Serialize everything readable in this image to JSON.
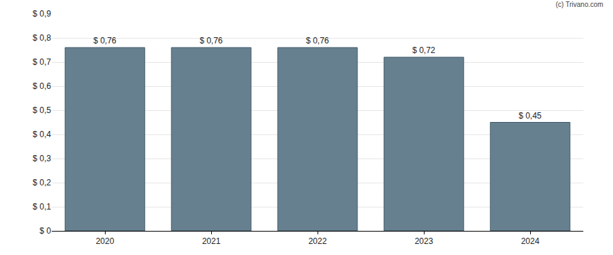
{
  "chart_data": {
    "type": "bar",
    "categories": [
      "2020",
      "2021",
      "2022",
      "2023",
      "2024"
    ],
    "values": [
      0.76,
      0.76,
      0.76,
      0.72,
      0.45
    ],
    "value_labels": [
      "$ 0,76",
      "$ 0,76",
      "$ 0,76",
      "$ 0,72",
      "$ 0,45"
    ],
    "data_labels": true,
    "color": "#66808f",
    "ylim": [
      0,
      0.9
    ],
    "yticks": [
      {
        "value": 0,
        "label": "$ 0"
      },
      {
        "value": 0.1,
        "label": "$ 0,1"
      },
      {
        "value": 0.2,
        "label": "$ 0,2"
      },
      {
        "value": 0.3,
        "label": "$ 0,3"
      },
      {
        "value": 0.4,
        "label": "$ 0,4"
      },
      {
        "value": 0.5,
        "label": "$ 0,5"
      },
      {
        "value": 0.6,
        "label": "$ 0,6"
      },
      {
        "value": 0.7,
        "label": "$ 0,7"
      },
      {
        "value": 0.8,
        "label": "$ 0,8"
      },
      {
        "value": 0.9,
        "label": "$ 0,9"
      }
    ],
    "grid": true,
    "annotations": [
      "(c) Trivano.com"
    ]
  }
}
